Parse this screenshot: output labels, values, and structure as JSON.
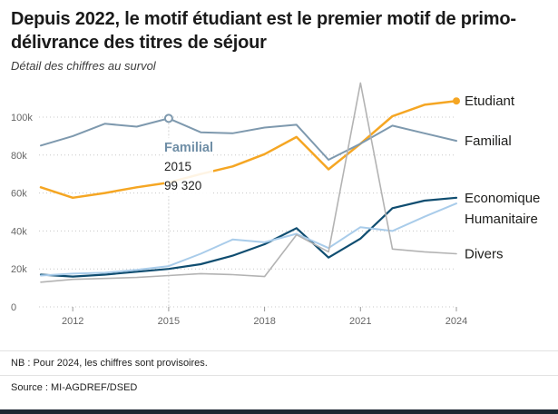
{
  "header": {
    "title": "Depuis 2022, le motif étudiant est le premier motif de primo-délivrance des titres de séjour",
    "subtitle": "Détail des chiffres au survol"
  },
  "tooltip": {
    "series": "Familial",
    "year": "2015",
    "value": "99 320"
  },
  "footer": {
    "note": "NB : Pour 2024, les chiffres sont provisoires.",
    "source": "Source : MI-AGDREF/DSED"
  },
  "chart_data": {
    "type": "line",
    "title": "Depuis 2022, le motif étudiant est le premier motif de primo-délivrance des titres de séjour",
    "x": [
      2011,
      2012,
      2013,
      2014,
      2015,
      2016,
      2017,
      2018,
      2019,
      2020,
      2021,
      2022,
      2023,
      2024
    ],
    "x_ticks": [
      2012,
      2015,
      2018,
      2021,
      2024
    ],
    "y_ticks": [
      0,
      20000,
      40000,
      60000,
      80000,
      100000
    ],
    "y_tick_labels": [
      "0",
      "20k",
      "40k",
      "60k",
      "80k",
      "100k"
    ],
    "ylim": [
      0,
      100000
    ],
    "grid": "dotted-horizontal",
    "legend_position": "right-of-line-ends",
    "series": [
      {
        "name": "Etudiant",
        "color": "#F5A623",
        "width": 2.5,
        "end_dot": true,
        "values": [
          63000,
          57500,
          60000,
          63000,
          65500,
          70000,
          74000,
          80500,
          89500,
          72500,
          86000,
          100500,
          106500,
          108500
        ]
      },
      {
        "name": "Familial",
        "color": "#7E99AE",
        "width": 2,
        "end_dot": false,
        "values": [
          85000,
          90000,
          96500,
          95000,
          99320,
          92000,
          91500,
          94500,
          96000,
          77500,
          86000,
          95500,
          91500,
          87500
        ]
      },
      {
        "name": "Economique",
        "color": "#0f4d70",
        "width": 2.2,
        "end_dot": false,
        "values": [
          17000,
          16000,
          17000,
          18500,
          20000,
          22500,
          27000,
          33000,
          41500,
          26000,
          36000,
          52000,
          56000,
          57500
        ]
      },
      {
        "name": "Humanitaire",
        "color": "#A9CCEA",
        "width": 2,
        "end_dot": false,
        "values": [
          16500,
          17500,
          18000,
          19500,
          21500,
          28000,
          35500,
          34000,
          38500,
          31000,
          42000,
          40000,
          47500,
          54500
        ]
      },
      {
        "name": "Divers",
        "color": "#B3B3B3",
        "width": 1.6,
        "end_dot": false,
        "values": [
          13000,
          14500,
          15000,
          15500,
          16500,
          17500,
          17000,
          16000,
          38000,
          29000,
          118000,
          30500,
          29000,
          28000
        ]
      }
    ],
    "marker": {
      "series": "Familial",
      "x": 2015,
      "value": 99320
    }
  }
}
